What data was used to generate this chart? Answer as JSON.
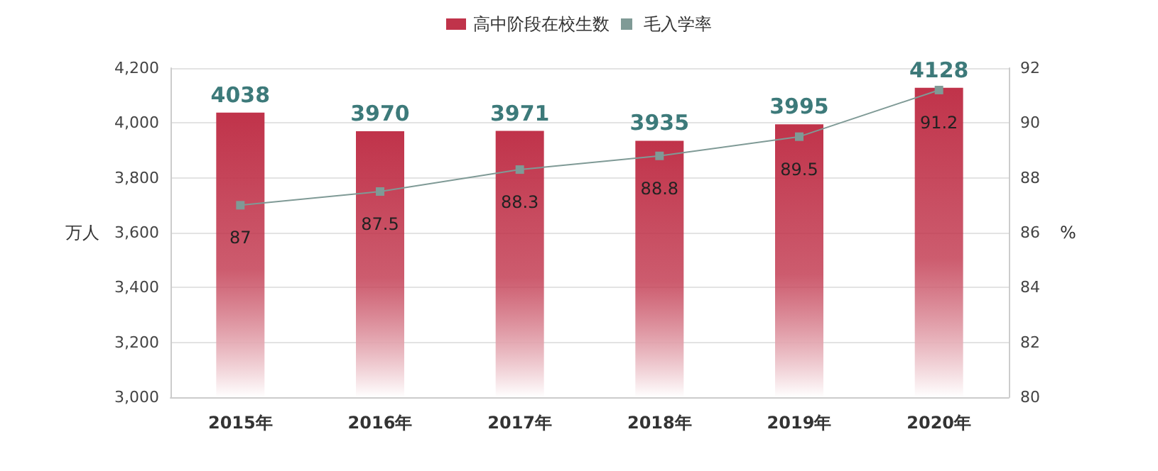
{
  "chart_data": {
    "type": "bar",
    "categories": [
      "2015年",
      "2016年",
      "2017年",
      "2018年",
      "2019年",
      "2020年"
    ],
    "series": [
      {
        "name": "高中阶段在校生数",
        "color": "#c0334a",
        "values": [
          4038,
          3970,
          3971,
          3935,
          3995,
          4128
        ]
      },
      {
        "name": "毛入学率",
        "type": "line",
        "axis": "y2",
        "color": "#7f9a96",
        "values": [
          87,
          87.5,
          88.3,
          88.8,
          89.5,
          91.2
        ]
      }
    ],
    "ylabel": "万人",
    "y2label": "%",
    "ylim": [
      3000,
      4200
    ],
    "yticks": [
      {
        "value": 3000,
        "label": "3,000"
      },
      {
        "value": 3200,
        "label": "3,200"
      },
      {
        "value": 3400,
        "label": "3,400"
      },
      {
        "value": 3600,
        "label": "3,600"
      },
      {
        "value": 3800,
        "label": "3,800"
      },
      {
        "value": 4000,
        "label": "4,000"
      },
      {
        "value": 4200,
        "label": "4,200"
      }
    ],
    "y2lim": [
      80,
      92
    ],
    "y2ticks": [
      80,
      82,
      84,
      86,
      88,
      90,
      92
    ],
    "grid": "y",
    "legend": "top",
    "marker": "square",
    "data_labels": true
  }
}
